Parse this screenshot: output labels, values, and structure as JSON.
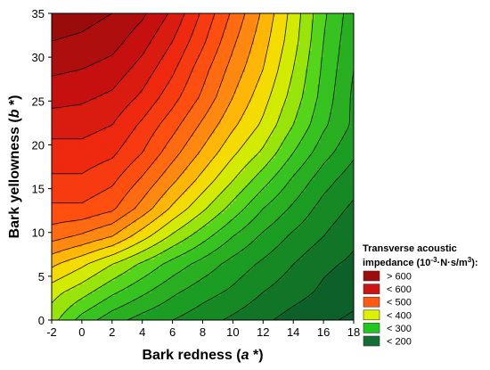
{
  "chart_data": {
    "type": "contour",
    "xlabel": "Bark redness",
    "xlabel_var": "a",
    "xlabel_suffix": " *)",
    "ylabel": "Bark yellowness",
    "ylabel_var": "b",
    "ylabel_suffix": " *)",
    "xlim": [
      -2,
      18
    ],
    "ylim": [
      0,
      35
    ],
    "x_ticks": [
      -2,
      0,
      2,
      4,
      6,
      8,
      10,
      12,
      14,
      16,
      18
    ],
    "y_ticks": [
      0,
      5,
      10,
      15,
      20,
      25,
      30,
      35
    ],
    "x_tick_labels": [
      "-2",
      "0",
      "2",
      "4",
      "6",
      "8",
      "10",
      "12",
      "14",
      "16",
      "18"
    ],
    "y_tick_labels": [
      "0",
      "5",
      "10",
      "15",
      "20",
      "25",
      "30",
      "35"
    ],
    "z_range": [
      150,
      700
    ],
    "contour_step": 25,
    "legend": {
      "title_line1": "Transverse acoustic",
      "title_line2": "impedance (10",
      "title_sup1": "-3",
      "title_mid": "·N·s/m",
      "title_sup2": "3",
      "title_end": "):",
      "placement": "bottom-right",
      "entries": [
        {
          "label": "> 600",
          "color": "#9e0c0c"
        },
        {
          "label": "< 600",
          "color": "#d01212"
        },
        {
          "label": "< 500",
          "color": "#ff5a14"
        },
        {
          "label": "< 400",
          "color": "#dcf000"
        },
        {
          "label": "< 300",
          "color": "#1ec81e"
        },
        {
          "label": "< 200",
          "color": "#126e32"
        }
      ]
    },
    "color_stops": [
      {
        "z": 180,
        "color": "#0c5a2a"
      },
      {
        "z": 260,
        "color": "#1a9a22"
      },
      {
        "z": 330,
        "color": "#3fd020"
      },
      {
        "z": 380,
        "color": "#c8ef00"
      },
      {
        "z": 420,
        "color": "#ffd800"
      },
      {
        "z": 460,
        "color": "#ff8c10"
      },
      {
        "z": 510,
        "color": "#ff5010"
      },
      {
        "z": 560,
        "color": "#f02a10"
      },
      {
        "z": 610,
        "color": "#c81010"
      },
      {
        "z": 660,
        "color": "#9a0c0c"
      }
    ],
    "grid": [
      [
        360,
        315,
        285,
        265,
        250,
        235,
        220,
        205,
        190,
        180,
        170
      ],
      [
        385,
        360,
        330,
        305,
        280,
        260,
        245,
        225,
        210,
        195,
        185
      ],
      [
        430,
        405,
        375,
        345,
        315,
        290,
        265,
        245,
        225,
        205,
        195
      ],
      [
        485,
        470,
        450,
        410,
        370,
        335,
        300,
        270,
        245,
        225,
        205
      ],
      [
        520,
        520,
        505,
        465,
        420,
        380,
        340,
        300,
        270,
        240,
        220
      ],
      [
        545,
        545,
        530,
        495,
        455,
        415,
        375,
        335,
        295,
        260,
        235
      ],
      [
        565,
        565,
        555,
        525,
        485,
        445,
        405,
        370,
        325,
        285,
        255
      ],
      [
        585,
        585,
        575,
        545,
        510,
        470,
        430,
        395,
        350,
        305,
        270
      ],
      [
        610,
        605,
        595,
        570,
        535,
        495,
        450,
        410,
        365,
        315,
        270
      ],
      [
        630,
        625,
        615,
        590,
        555,
        510,
        465,
        425,
        375,
        320,
        275
      ],
      [
        650,
        645,
        635,
        610,
        575,
        530,
        480,
        435,
        385,
        325,
        280
      ],
      [
        665,
        660,
        650,
        630,
        595,
        545,
        495,
        445,
        390,
        330,
        285
      ]
    ]
  }
}
